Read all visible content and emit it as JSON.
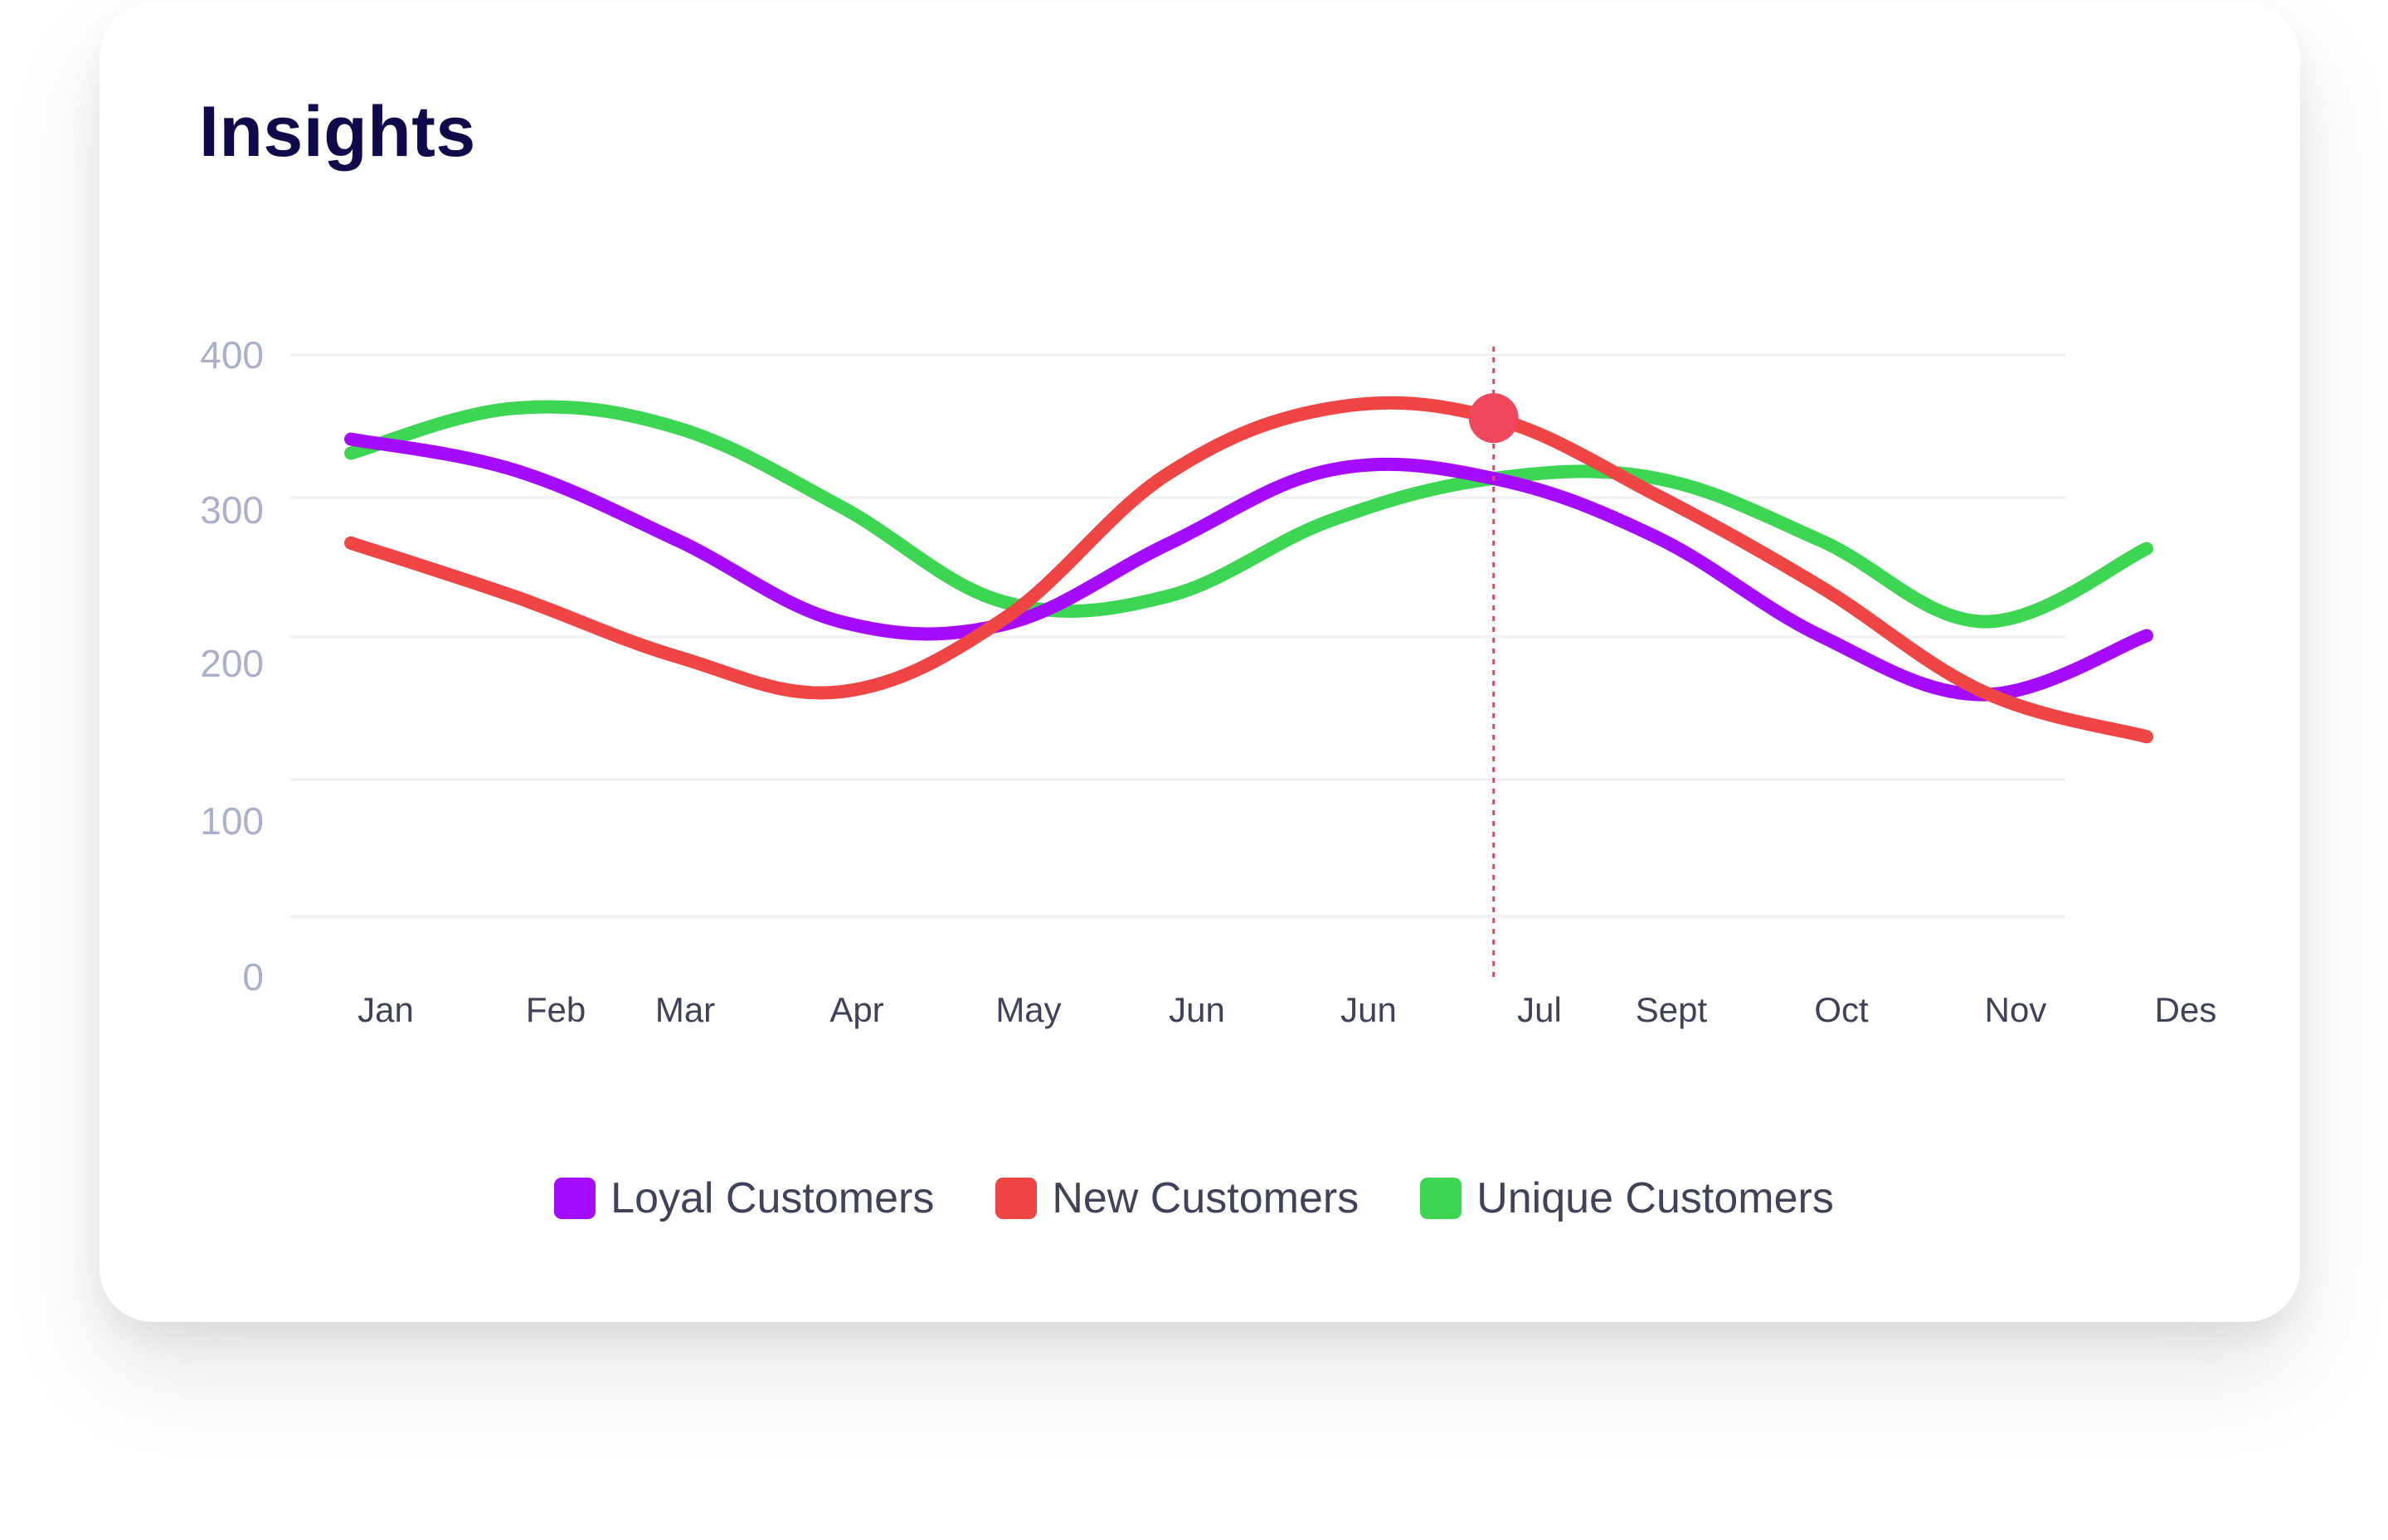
{
  "card": {
    "title": "Insights"
  },
  "chart_data": {
    "type": "line",
    "title": "Insights",
    "xlabel": "",
    "ylabel": "",
    "ylim": [
      0,
      400
    ],
    "y_ticks": [
      "400",
      "300",
      "200",
      "100",
      "0"
    ],
    "categories": [
      "Jan",
      "Feb",
      "Mar",
      "Apr",
      "May",
      "Jun",
      "Jun",
      "Jul",
      "Sept",
      "Oct",
      "Nov",
      "Des"
    ],
    "grid": true,
    "legend_position": "bottom",
    "highlight": {
      "category_index": 7,
      "series_index": 1
    },
    "series": [
      {
        "name": "Loyal Customers",
        "color": "#a50cff",
        "values": [
          340,
          318,
          268,
          210,
          208,
          265,
          318,
          312,
          270,
          200,
          158,
          200
        ]
      },
      {
        "name": "New Customers",
        "color": "#f04545",
        "values": [
          266,
          228,
          185,
          160,
          212,
          315,
          362,
          355,
          300,
          235,
          160,
          128
        ]
      },
      {
        "name": "Unique Customers",
        "color": "#3dd653",
        "values": [
          330,
          362,
          348,
          292,
          224,
          228,
          282,
          312,
          312,
          268,
          210,
          262
        ]
      }
    ]
  }
}
